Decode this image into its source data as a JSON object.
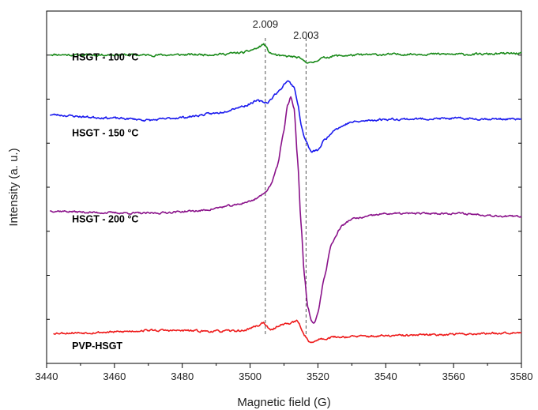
{
  "chart_data": {
    "type": "line",
    "title": "",
    "xlabel": "Magnetic field (G)",
    "ylabel": "Intensity (a. u.)",
    "xlim": [
      3440,
      3580
    ],
    "ylim": [
      0,
      100
    ],
    "x_ticks": [
      3440,
      3460,
      3480,
      3500,
      3520,
      3540,
      3560,
      3580
    ],
    "y_tick_labels_shown": false,
    "grid": false,
    "legend": "inline-labels",
    "annotations": [
      {
        "text": "2.009",
        "x": 3504.5
      },
      {
        "text": "2.003",
        "x": 3516.5
      }
    ],
    "series": [
      {
        "name": "HSGT - 100 °C",
        "color": "#1a8a1a",
        "label_x": 3444,
        "label_y": 86,
        "noise": 0.55,
        "seed": 11,
        "points": [
          [
            3441,
            87.7
          ],
          [
            3450,
            87.5
          ],
          [
            3460,
            87.6
          ],
          [
            3470,
            87.5
          ],
          [
            3480,
            87.6
          ],
          [
            3490,
            87.7
          ],
          [
            3498,
            88.2
          ],
          [
            3502,
            89.4
          ],
          [
            3504,
            90.6
          ],
          [
            3506,
            88.0
          ],
          [
            3509,
            87.2
          ],
          [
            3512,
            87.1
          ],
          [
            3514,
            86.8
          ],
          [
            3516,
            85.8
          ],
          [
            3518,
            85.2
          ],
          [
            3521,
            86.6
          ],
          [
            3525,
            87.3
          ],
          [
            3535,
            87.6
          ],
          [
            3550,
            87.8
          ],
          [
            3565,
            87.7
          ],
          [
            3580,
            88.0
          ]
        ]
      },
      {
        "name": "HSGT - 150 °C",
        "color": "#1a1aee",
        "label_x": 3444,
        "label_y": 64.5,
        "noise": 0.55,
        "seed": 23,
        "points": [
          [
            3441,
            70.6
          ],
          [
            3455,
            69.8
          ],
          [
            3465,
            69.4
          ],
          [
            3470,
            69.0
          ],
          [
            3480,
            69.8
          ],
          [
            3490,
            71.0
          ],
          [
            3498,
            73.0
          ],
          [
            3502,
            74.5
          ],
          [
            3505,
            74.0
          ],
          [
            3508,
            76.8
          ],
          [
            3511,
            80.2
          ],
          [
            3513,
            78.5
          ],
          [
            3514,
            74.0
          ],
          [
            3515,
            68.0
          ],
          [
            3516,
            64.0
          ],
          [
            3518,
            60.0
          ],
          [
            3520,
            60.5
          ],
          [
            3522,
            63.5
          ],
          [
            3525,
            66.5
          ],
          [
            3530,
            68.5
          ],
          [
            3540,
            69.3
          ],
          [
            3560,
            69.5
          ],
          [
            3580,
            69.3
          ]
        ]
      },
      {
        "name": "HSGT - 200 °C",
        "color": "#8a128a",
        "label_x": 3444,
        "label_y": 40,
        "noise": 0.5,
        "seed": 37,
        "points": [
          [
            3441,
            43.3
          ],
          [
            3455,
            42.8
          ],
          [
            3470,
            42.6
          ],
          [
            3485,
            43.3
          ],
          [
            3495,
            44.8
          ],
          [
            3500,
            46.0
          ],
          [
            3504,
            48.0
          ],
          [
            3506,
            50.5
          ],
          [
            3508,
            56.0
          ],
          [
            3510,
            66.0
          ],
          [
            3511,
            73.0
          ],
          [
            3512,
            75.8
          ],
          [
            3513,
            72.0
          ],
          [
            3514,
            58.0
          ],
          [
            3515,
            40.0
          ],
          [
            3516,
            25.0
          ],
          [
            3517,
            16.0
          ],
          [
            3518,
            12.0
          ],
          [
            3519,
            11.5
          ],
          [
            3520,
            14.5
          ],
          [
            3522,
            25.0
          ],
          [
            3524,
            34.0
          ],
          [
            3527,
            39.0
          ],
          [
            3530,
            41.0
          ],
          [
            3540,
            42.5
          ],
          [
            3560,
            42.6
          ],
          [
            3580,
            41.6
          ]
        ]
      },
      {
        "name": "PVP-HSGT",
        "color": "#ee1a1a",
        "label_x": 3444,
        "label_y": 4,
        "noise": 0.55,
        "seed": 53,
        "points": [
          [
            3442,
            8.6
          ],
          [
            3450,
            8.7
          ],
          [
            3460,
            8.9
          ],
          [
            3470,
            9.4
          ],
          [
            3480,
            9.3
          ],
          [
            3490,
            9.1
          ],
          [
            3498,
            9.3
          ],
          [
            3502,
            10.6
          ],
          [
            3504,
            11.6
          ],
          [
            3506,
            9.3
          ],
          [
            3509,
            11.0
          ],
          [
            3511,
            11.3
          ],
          [
            3514,
            12.0
          ],
          [
            3516,
            8.0
          ],
          [
            3518,
            5.7
          ],
          [
            3520,
            6.8
          ],
          [
            3525,
            7.5
          ],
          [
            3535,
            7.7
          ],
          [
            3545,
            7.9
          ],
          [
            3560,
            8.3
          ],
          [
            3570,
            8.5
          ],
          [
            3580,
            8.9
          ]
        ]
      }
    ]
  }
}
